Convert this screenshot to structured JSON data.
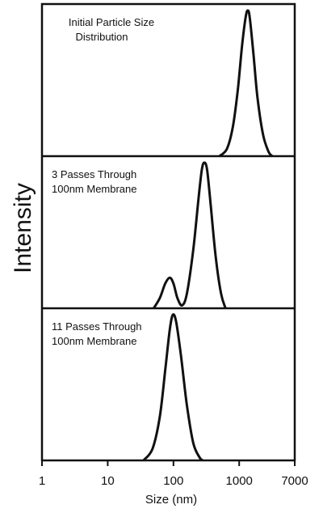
{
  "chart_data": {
    "type": "line",
    "title": "",
    "xlabel": "Size (nm)",
    "ylabel": "Intensity",
    "x_scale": "log",
    "xlim": [
      1,
      7000
    ],
    "x_ticks": [
      1,
      10,
      100,
      1000,
      7000
    ],
    "x_tick_labels": [
      "1",
      "10",
      "100",
      "1000",
      "7000"
    ],
    "grid": false,
    "panels": [
      {
        "label_lines": [
          "Initial Particle Size",
          "Distribution"
        ],
        "series": [
          {
            "values": [
              {
                "x": 500,
                "y": 0
              },
              {
                "x": 650,
                "y": 0.05
              },
              {
                "x": 800,
                "y": 0.2
              },
              {
                "x": 950,
                "y": 0.45
              },
              {
                "x": 1100,
                "y": 0.75
              },
              {
                "x": 1250,
                "y": 0.95
              },
              {
                "x": 1350,
                "y": 1.0
              },
              {
                "x": 1450,
                "y": 0.95
              },
              {
                "x": 1650,
                "y": 0.7
              },
              {
                "x": 1900,
                "y": 0.4
              },
              {
                "x": 2300,
                "y": 0.15
              },
              {
                "x": 2800,
                "y": 0.03
              },
              {
                "x": 3200,
                "y": 0
              }
            ]
          }
        ]
      },
      {
        "label_lines": [
          "3 Passes Through",
          "100nm Membrane"
        ],
        "series": [
          {
            "values": [
              {
                "x": 50,
                "y": 0
              },
              {
                "x": 62,
                "y": 0.07
              },
              {
                "x": 75,
                "y": 0.17
              },
              {
                "x": 88,
                "y": 0.21
              },
              {
                "x": 100,
                "y": 0.17
              },
              {
                "x": 115,
                "y": 0.07
              },
              {
                "x": 135,
                "y": 0.02
              },
              {
                "x": 160,
                "y": 0.1
              },
              {
                "x": 200,
                "y": 0.4
              },
              {
                "x": 240,
                "y": 0.75
              },
              {
                "x": 270,
                "y": 0.95
              },
              {
                "x": 295,
                "y": 1.0
              },
              {
                "x": 325,
                "y": 0.95
              },
              {
                "x": 370,
                "y": 0.7
              },
              {
                "x": 440,
                "y": 0.35
              },
              {
                "x": 530,
                "y": 0.1
              },
              {
                "x": 620,
                "y": 0
              }
            ]
          }
        ]
      },
      {
        "label_lines": [
          "11 Passes Through",
          "100nm Membrane"
        ],
        "series": [
          {
            "values": [
              {
                "x": 35,
                "y": 0
              },
              {
                "x": 48,
                "y": 0.08
              },
              {
                "x": 62,
                "y": 0.3
              },
              {
                "x": 75,
                "y": 0.62
              },
              {
                "x": 88,
                "y": 0.9
              },
              {
                "x": 98,
                "y": 1.0
              },
              {
                "x": 110,
                "y": 0.95
              },
              {
                "x": 130,
                "y": 0.72
              },
              {
                "x": 160,
                "y": 0.38
              },
              {
                "x": 200,
                "y": 0.12
              },
              {
                "x": 250,
                "y": 0.02
              },
              {
                "x": 280,
                "y": 0
              }
            ]
          }
        ]
      }
    ]
  }
}
